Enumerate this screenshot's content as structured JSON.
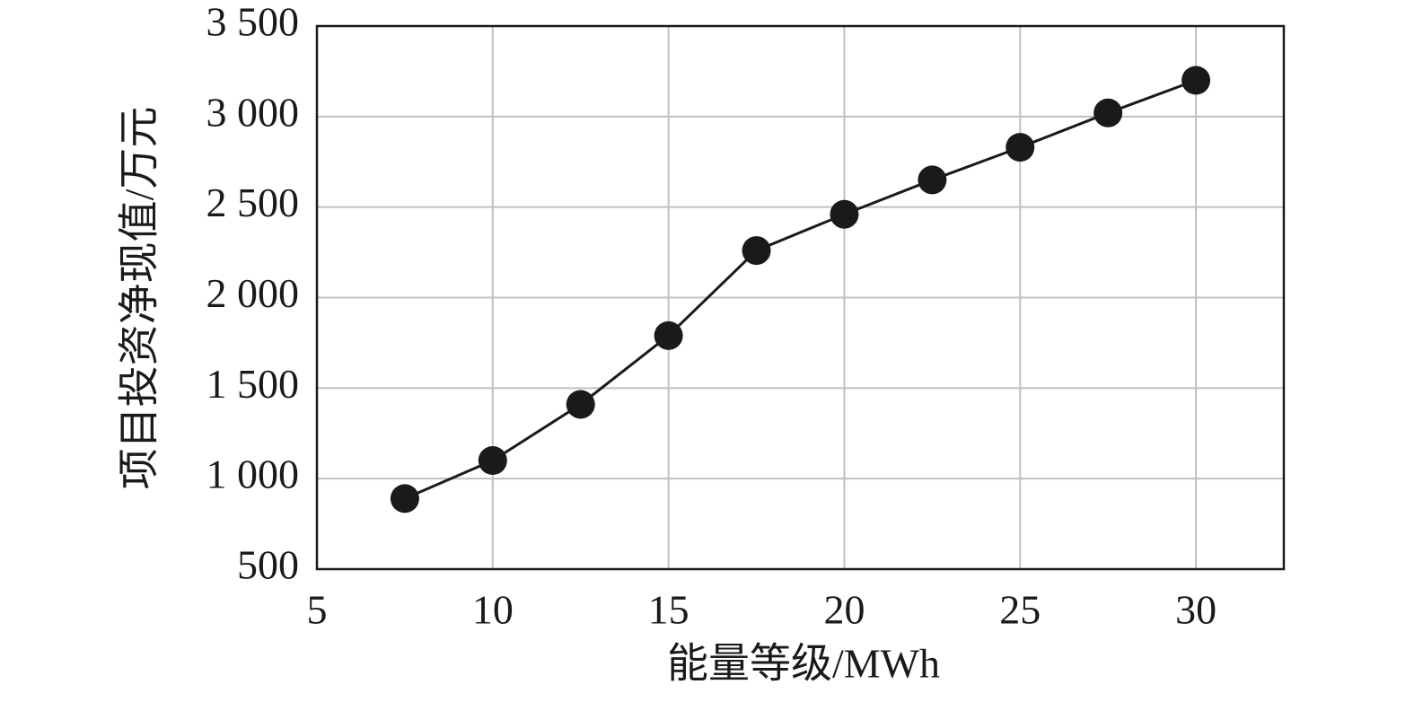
{
  "chart_data": {
    "type": "line",
    "x_label": "能量等级/MWh",
    "y_label": "项目投资净现值/万元",
    "x": [
      7.5,
      10,
      12.5,
      15,
      17.5,
      20,
      22.5,
      25,
      27.5,
      30
    ],
    "values": [
      890,
      1100,
      1410,
      1790,
      2260,
      2460,
      2650,
      2830,
      3020,
      3200
    ],
    "color": "#1a1a1a",
    "xlim": [
      5,
      32.5
    ],
    "xticks": [
      5,
      10,
      15,
      20,
      25,
      30
    ],
    "ylim": [
      500,
      3500
    ],
    "yticks": [
      500,
      {
        "value": 1000,
        "label": "1 000"
      },
      {
        "value": 1500,
        "label": "1 500"
      },
      {
        "value": 2000,
        "label": "2 000"
      },
      {
        "value": 2500,
        "label": "2 500"
      },
      {
        "value": 3000,
        "label": "3 000"
      },
      {
        "value": 3500,
        "label": "3 500"
      }
    ],
    "grid": true
  }
}
